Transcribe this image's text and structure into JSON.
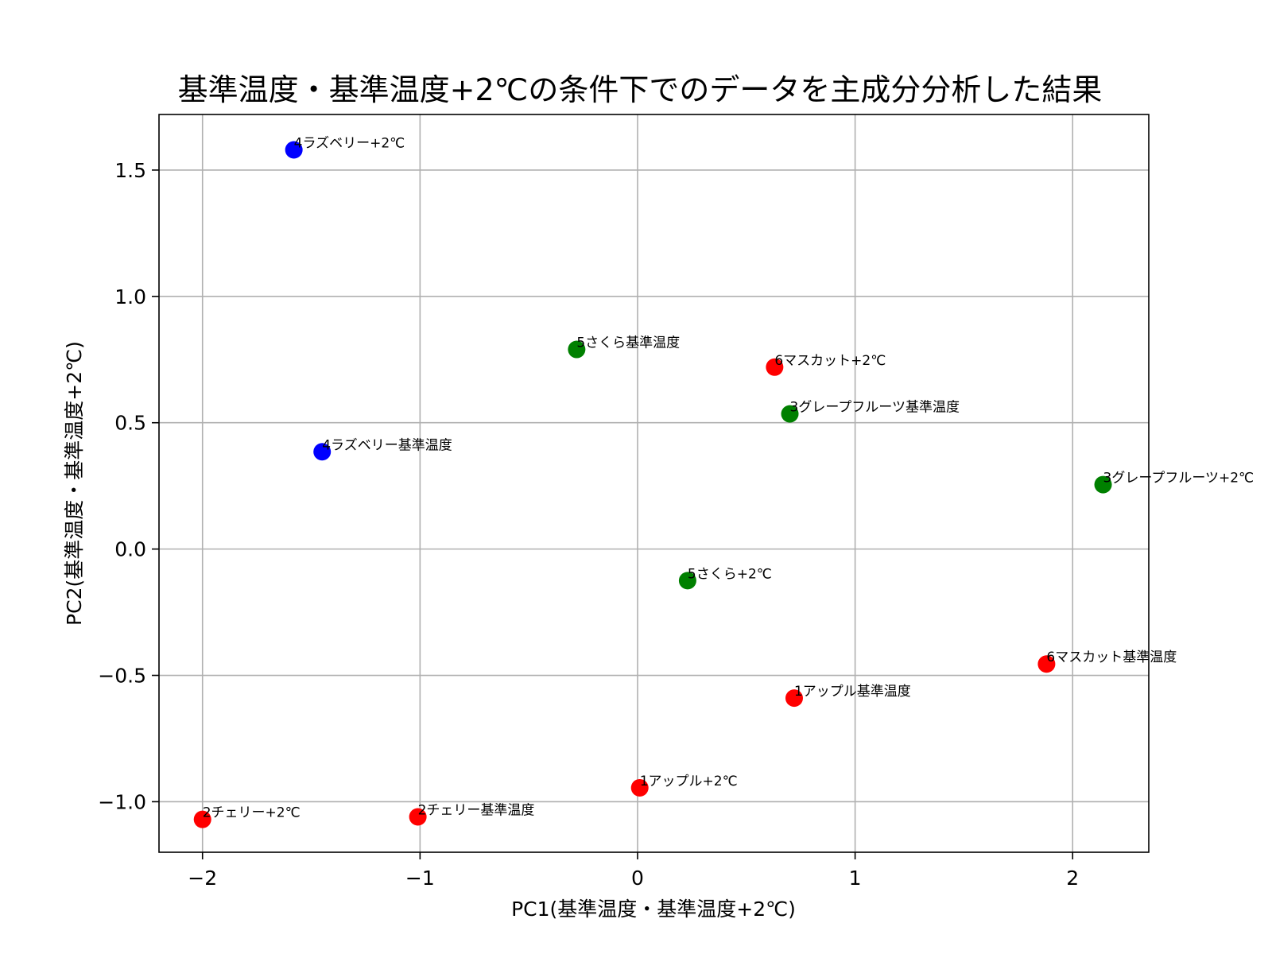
{
  "chart_data": {
    "type": "scatter",
    "title": "基準温度・基準温度+2℃の条件下でのデータを主成分分析した結果",
    "xlabel": "PC1(基準温度・基準温度+2℃)",
    "ylabel": "PC2(基準温度・基準温度+2℃)",
    "xlim": [
      -2.2,
      2.35
    ],
    "ylim": [
      -1.2,
      1.72
    ],
    "xticks": [
      {
        "value": -2,
        "label": "−2"
      },
      {
        "value": -1,
        "label": "−1"
      },
      {
        "value": 0,
        "label": "0"
      },
      {
        "value": 1,
        "label": "1"
      },
      {
        "value": 2,
        "label": "2"
      }
    ],
    "yticks": [
      {
        "value": -1.0,
        "label": "−1.0"
      },
      {
        "value": -0.5,
        "label": "−0.5"
      },
      {
        "value": 0.0,
        "label": "0.0"
      },
      {
        "value": 0.5,
        "label": "0.5"
      },
      {
        "value": 1.0,
        "label": "1.0"
      },
      {
        "value": 1.5,
        "label": "1.5"
      }
    ],
    "grid": true,
    "points": [
      {
        "label": "4ラズベリー+2℃",
        "x": -1.58,
        "y": 1.58,
        "color": "#0000ff"
      },
      {
        "label": "4ラズベリー基準温度",
        "x": -1.45,
        "y": 0.385,
        "color": "#0000ff"
      },
      {
        "label": "5さくら基準温度",
        "x": -0.28,
        "y": 0.79,
        "color": "#008000"
      },
      {
        "label": "6マスカット+2℃",
        "x": 0.63,
        "y": 0.72,
        "color": "#ff0000"
      },
      {
        "label": "3グレープフルーツ基準温度",
        "x": 0.7,
        "y": 0.535,
        "color": "#008000"
      },
      {
        "label": "3グレープフルーツ+2℃",
        "x": 2.14,
        "y": 0.255,
        "color": "#008000"
      },
      {
        "label": "5さくら+2℃",
        "x": 0.23,
        "y": -0.125,
        "color": "#008000"
      },
      {
        "label": "6マスカット基準温度",
        "x": 1.88,
        "y": -0.455,
        "color": "#ff0000"
      },
      {
        "label": "1アップル基準温度",
        "x": 0.72,
        "y": -0.59,
        "color": "#ff0000"
      },
      {
        "label": "1アップル+2℃",
        "x": 0.01,
        "y": -0.945,
        "color": "#ff0000"
      },
      {
        "label": "2チェリー+2℃",
        "x": -2.0,
        "y": -1.07,
        "color": "#ff0000"
      },
      {
        "label": "2チェリー基準温度",
        "x": -1.01,
        "y": -1.06,
        "color": "#ff0000"
      }
    ]
  }
}
